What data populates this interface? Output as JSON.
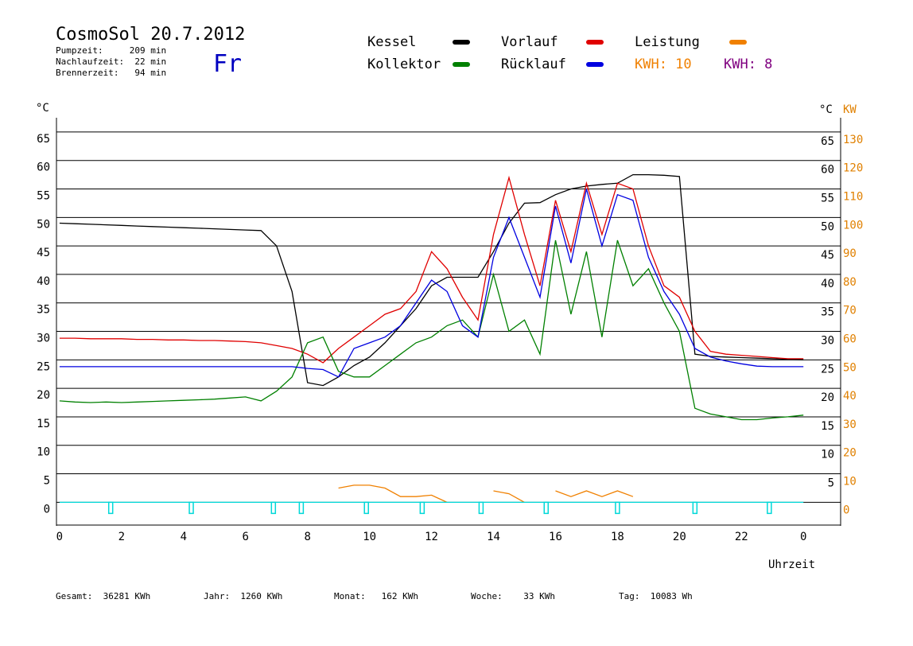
{
  "header": {
    "title": "CosmoSol 20.7.2012",
    "lines": [
      "Pumpzeit:     209 min",
      "Nachlaufzeit:  22 min",
      "Brennerzeit:   94 min"
    ],
    "weekday": "Fr"
  },
  "chart_data": {
    "type": "line",
    "ylabel": "°C",
    "y2label_celsius": "°C",
    "y2label": "KW",
    "xlabel": "Uhrzeit",
    "x": [
      0,
      0.5,
      1,
      1.5,
      2,
      2.5,
      3,
      3.5,
      4,
      4.5,
      5,
      5.5,
      6,
      6.5,
      7,
      7.5,
      8,
      8.5,
      9,
      9.5,
      10,
      10.5,
      11,
      11.5,
      12,
      12.5,
      13,
      13.5,
      14,
      14.5,
      15,
      15.5,
      16,
      16.5,
      17,
      17.5,
      18,
      18.5,
      19,
      19.5,
      20,
      20.5,
      21,
      21.5,
      22,
      22.5,
      23,
      23.5,
      24
    ],
    "xlim": [
      -0.1,
      25.2
    ],
    "xticks": [
      0,
      2,
      4,
      6,
      8,
      10,
      12,
      14,
      16,
      18,
      20,
      22,
      {
        "value": 24,
        "label": "0"
      }
    ],
    "ylim": [
      -4,
      67.5
    ],
    "yticks": [
      0,
      5,
      10,
      15,
      20,
      25,
      30,
      35,
      40,
      45,
      50,
      55,
      60,
      65
    ],
    "yticks_right": [
      5,
      10,
      15,
      20,
      25,
      30,
      35,
      40,
      45,
      50,
      55,
      60,
      65
    ],
    "y2lim": [
      -8,
      135
    ],
    "y2ticks": [
      0,
      10,
      20,
      30,
      40,
      50,
      60,
      70,
      80,
      90,
      100,
      110,
      120,
      130
    ],
    "grid": true,
    "series": [
      {
        "name": "Kessel",
        "color": "#000000",
        "values": [
          49,
          48.9,
          48.8,
          48.7,
          48.6,
          48.5,
          48.4,
          48.3,
          48.2,
          48.1,
          48,
          47.9,
          47.8,
          47.7,
          45,
          37,
          21,
          20.5,
          22,
          24,
          25.5,
          28,
          31,
          34,
          38,
          39.5,
          39.5,
          39.5,
          44,
          49,
          52.5,
          52.6,
          54,
          55,
          55.5,
          55.8,
          56,
          57.5,
          57.5,
          57.4,
          57.2,
          26,
          25.6,
          25.5,
          25.4,
          25.3,
          25.2,
          25.1,
          25
        ]
      },
      {
        "name": "Vorlauf",
        "color": "#e00000",
        "values": [
          28.8,
          28.8,
          28.7,
          28.7,
          28.7,
          28.6,
          28.6,
          28.5,
          28.5,
          28.4,
          28.4,
          28.3,
          28.2,
          28,
          27.5,
          27,
          26,
          24.5,
          27,
          29,
          31,
          33,
          34,
          37,
          44,
          41,
          36,
          32,
          47,
          57,
          47,
          38,
          53,
          44,
          56,
          47,
          56,
          55,
          45,
          38,
          36,
          30,
          26.5,
          26,
          25.8,
          25.6,
          25.4,
          25.2,
          25.2
        ]
      },
      {
        "name": "Leistung",
        "color": "#f08000",
        "axis": "y2",
        "values": [
          null,
          null,
          null,
          null,
          null,
          null,
          null,
          null,
          null,
          null,
          null,
          null,
          null,
          null,
          null,
          null,
          null,
          null,
          5,
          6,
          6,
          5,
          2,
          2,
          2.5,
          0,
          null,
          null,
          4,
          3,
          0,
          null,
          4,
          2,
          4,
          2,
          4,
          2,
          null,
          null,
          null,
          null,
          null,
          null,
          null,
          null,
          null,
          null,
          null
        ]
      },
      {
        "name": "Kollektor",
        "color": "#008000",
        "values": [
          17.8,
          17.6,
          17.5,
          17.6,
          17.5,
          17.6,
          17.7,
          17.8,
          17.9,
          18,
          18.1,
          18.3,
          18.5,
          17.8,
          19.5,
          22,
          28,
          29,
          23,
          22,
          22,
          24,
          26,
          28,
          29,
          31,
          32,
          29,
          40,
          30,
          32,
          26,
          46,
          33,
          44,
          29,
          46,
          38,
          41,
          35,
          30,
          16.5,
          15.5,
          15,
          14.5,
          14.5,
          14.8,
          15,
          15.3
        ]
      },
      {
        "name": "Rücklauf",
        "color": "#0000e0",
        "values": [
          23.8,
          23.8,
          23.8,
          23.8,
          23.8,
          23.8,
          23.8,
          23.8,
          23.8,
          23.8,
          23.8,
          23.8,
          23.8,
          23.8,
          23.8,
          23.8,
          23.5,
          23.3,
          22,
          27,
          28,
          29,
          31,
          35,
          39,
          37,
          31,
          29,
          43,
          50,
          43,
          36,
          52,
          42,
          55,
          45,
          54,
          53,
          43,
          37,
          33,
          27,
          25.5,
          24.8,
          24.3,
          23.9,
          23.8,
          23.8,
          23.8
        ]
      },
      {
        "color": "#00d8d8",
        "values": [
          0,
          0,
          0,
          0,
          0,
          0,
          0,
          0,
          0,
          0,
          0,
          0,
          0,
          0,
          0,
          0,
          0,
          0,
          0,
          0,
          0,
          0,
          0,
          0,
          0,
          0,
          0,
          0,
          0,
          0,
          0,
          0,
          0,
          0,
          0,
          0,
          0,
          0,
          0,
          0,
          0,
          0,
          0,
          0,
          0,
          0,
          0,
          0,
          0
        ]
      }
    ],
    "pump_markers_x": [
      1.65,
      4.25,
      6.9,
      7.8,
      9.9,
      11.7,
      13.6,
      15.7,
      18,
      20.5,
      22.9
    ],
    "kwh_labels": [
      {
        "text": "KWH: 10",
        "color": "#f08000"
      },
      {
        "text": "KWH: 8",
        "color": "#800080"
      }
    ]
  },
  "footer": [
    "Gesamt:  36281 KWh",
    "Jahr:  1260 KWh",
    "Monat:   162 KWh",
    "Woche:    33 KWh",
    "Tag:  10083 Wh"
  ]
}
